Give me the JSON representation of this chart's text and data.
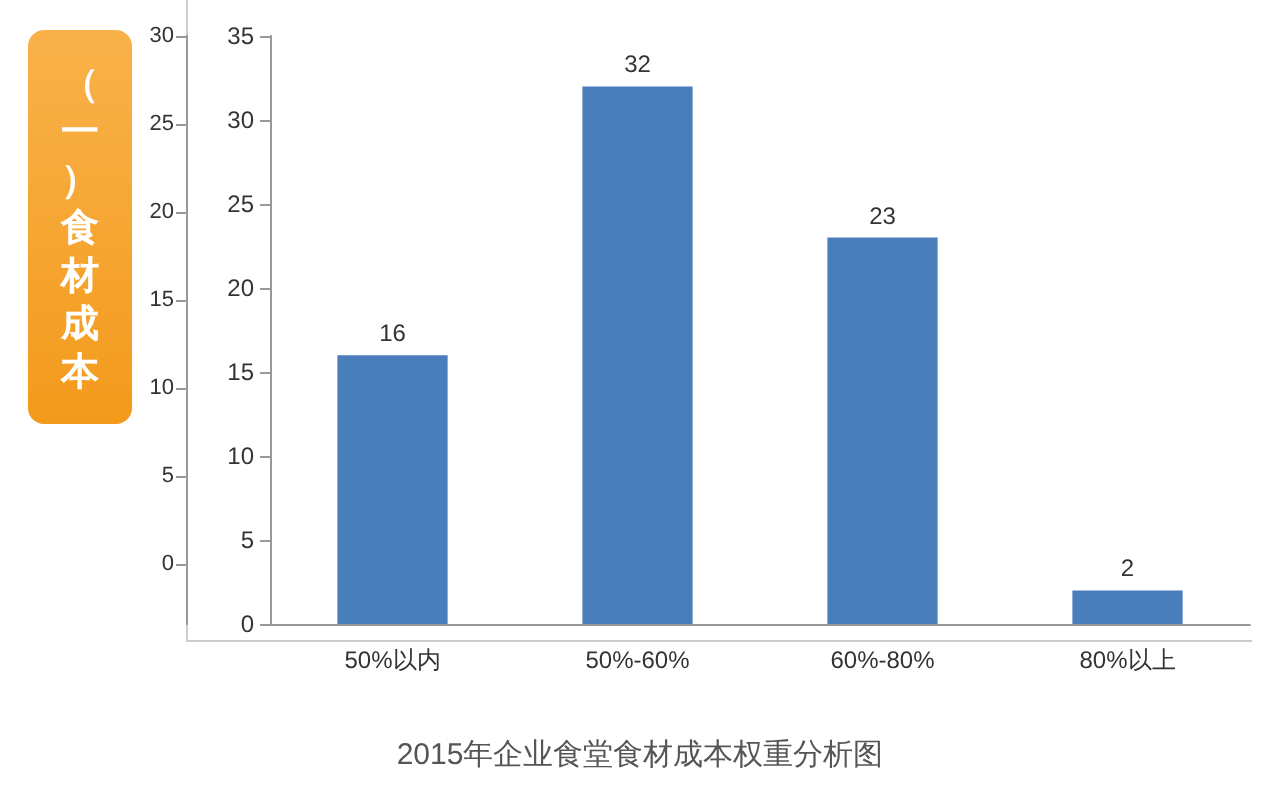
{
  "chart_data": {
    "type": "bar",
    "title": "2015年企业食堂食材成本权重分析图",
    "annotations": [
      "（一）食材成本"
    ],
    "categories": [
      "50%以内",
      "50%-60%",
      "60%-80%",
      "80%以上"
    ],
    "values": [
      16,
      32,
      23,
      2
    ],
    "color": "#4a7ebb",
    "ylim": [
      0,
      35
    ],
    "yticks": [
      0,
      5,
      10,
      15,
      20,
      25,
      30,
      35
    ],
    "y2lim": [
      -3.4,
      30
    ],
    "y2ticks": [
      0,
      5,
      10,
      15,
      20,
      25,
      30
    ],
    "data_labels": true,
    "grid": false
  }
}
